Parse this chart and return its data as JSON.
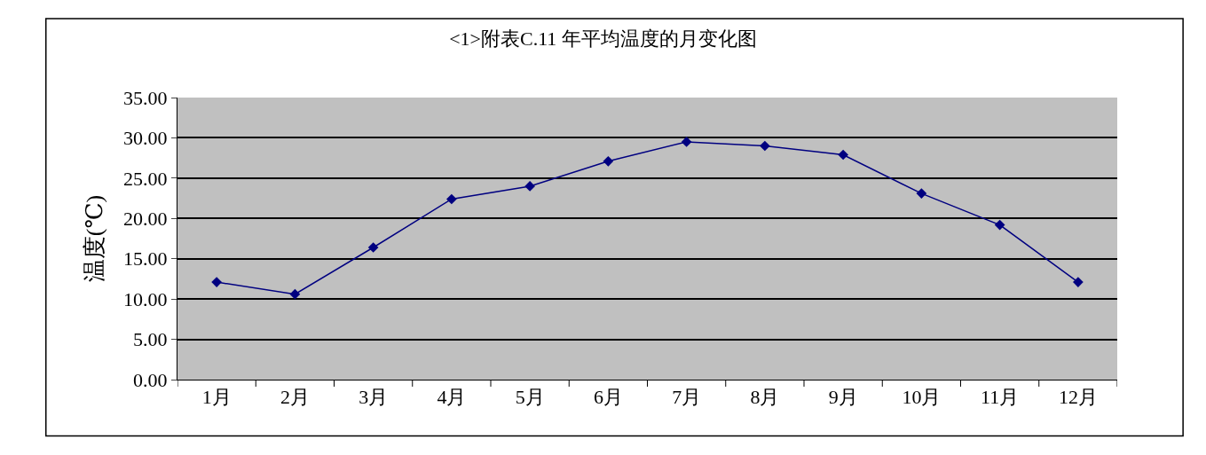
{
  "chart_data": {
    "type": "line",
    "title": "<1>附表C.11 年平均温度的月变化图",
    "ylabel": "温度(℃)",
    "categories": [
      "1月",
      "2月",
      "3月",
      "4月",
      "5月",
      "6月",
      "7月",
      "8月",
      "9月",
      "10月",
      "11月",
      "12月"
    ],
    "series": [
      {
        "color": "#000080",
        "values": [
          12.1,
          10.6,
          16.4,
          22.4,
          24.0,
          27.1,
          29.5,
          29.0,
          27.9,
          23.1,
          19.2,
          12.1
        ]
      }
    ],
    "ylim": [
      0,
      35
    ],
    "yticks": [
      {
        "value": 0,
        "label": "0.00"
      },
      {
        "value": 5,
        "label": "5.00"
      },
      {
        "value": 10,
        "label": "10.00"
      },
      {
        "value": 15,
        "label": "15.00"
      },
      {
        "value": 20,
        "label": "20.00"
      },
      {
        "value": 25,
        "label": "25.00"
      },
      {
        "value": 30,
        "label": "30.00"
      },
      {
        "value": 35,
        "label": "35.00"
      }
    ],
    "grid": "y",
    "marker": "diamond",
    "line_style": "solid"
  }
}
